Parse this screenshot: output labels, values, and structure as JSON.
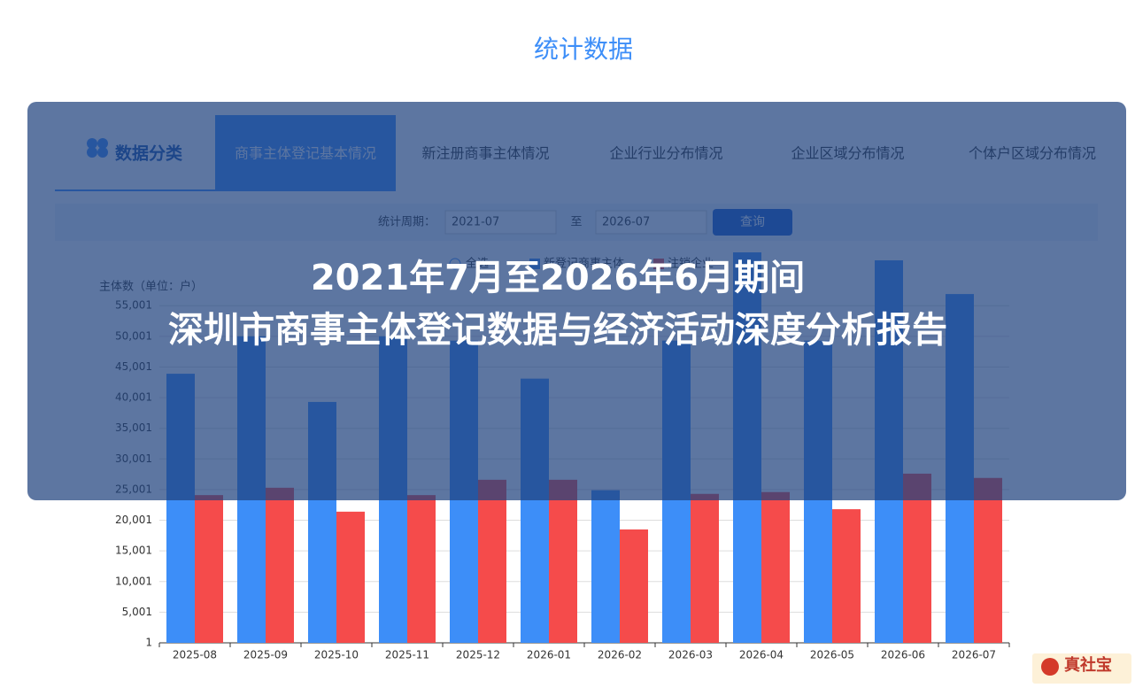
{
  "page_title": "统计数据",
  "category_panel": {
    "label": "数据分类",
    "tabs": [
      "商事主体登记基本情况",
      "新注册商事主体情况",
      "企业行业分布情况",
      "企业区域分布情况",
      "个体户区域分布情况"
    ],
    "active_tab": 0
  },
  "filter": {
    "label": "统计周期：",
    "from": "2021-07",
    "separator": "至",
    "to": "2026-07",
    "button": "查询"
  },
  "overlay": {
    "line1": "2021年7月至2026年6月期间",
    "line2": "深圳市商事主体登记数据与经济活动深度分析报告"
  },
  "watermark": "真社宝",
  "chart_data": {
    "type": "bar",
    "y_label": "主体数（单位：户）",
    "select_all_label": "全选",
    "categories": [
      "2025-08",
      "2025-09",
      "2025-10",
      "2025-11",
      "2025-12",
      "2026-01",
      "2026-02",
      "2026-03",
      "2026-04",
      "2026-05",
      "2026-06",
      "2026-07"
    ],
    "series": [
      {
        "name": "新登记商事主体",
        "color": "#3d8ef8",
        "values": [
          43900,
          50000,
          39300,
          50000,
          49300,
          43100,
          24900,
          49300,
          63700,
          49300,
          62400,
          56900
        ]
      },
      {
        "name": "注销企业",
        "color": "#f54b4b",
        "values": [
          24100,
          25300,
          21400,
          24100,
          26600,
          26600,
          18500,
          24300,
          24600,
          21800,
          27600,
          26900
        ]
      }
    ],
    "ylim": [
      1,
      65001
    ],
    "yticks": [
      1,
      {
        "value": 5001,
        "label": "5,001"
      },
      {
        "value": 10001,
        "label": "10,001"
      },
      {
        "value": 15001,
        "label": "15,001"
      },
      {
        "value": 20001,
        "label": "20,001"
      },
      {
        "value": 25001,
        "label": "25,001"
      },
      {
        "value": 30001,
        "label": "30,001"
      },
      {
        "value": 35001,
        "label": "35,001"
      },
      {
        "value": 40001,
        "label": "40,001"
      },
      {
        "value": 45001,
        "label": "45,001"
      },
      {
        "value": 50001,
        "label": "50,001"
      },
      {
        "value": 55001,
        "label": "55,001"
      }
    ],
    "grid": true
  }
}
